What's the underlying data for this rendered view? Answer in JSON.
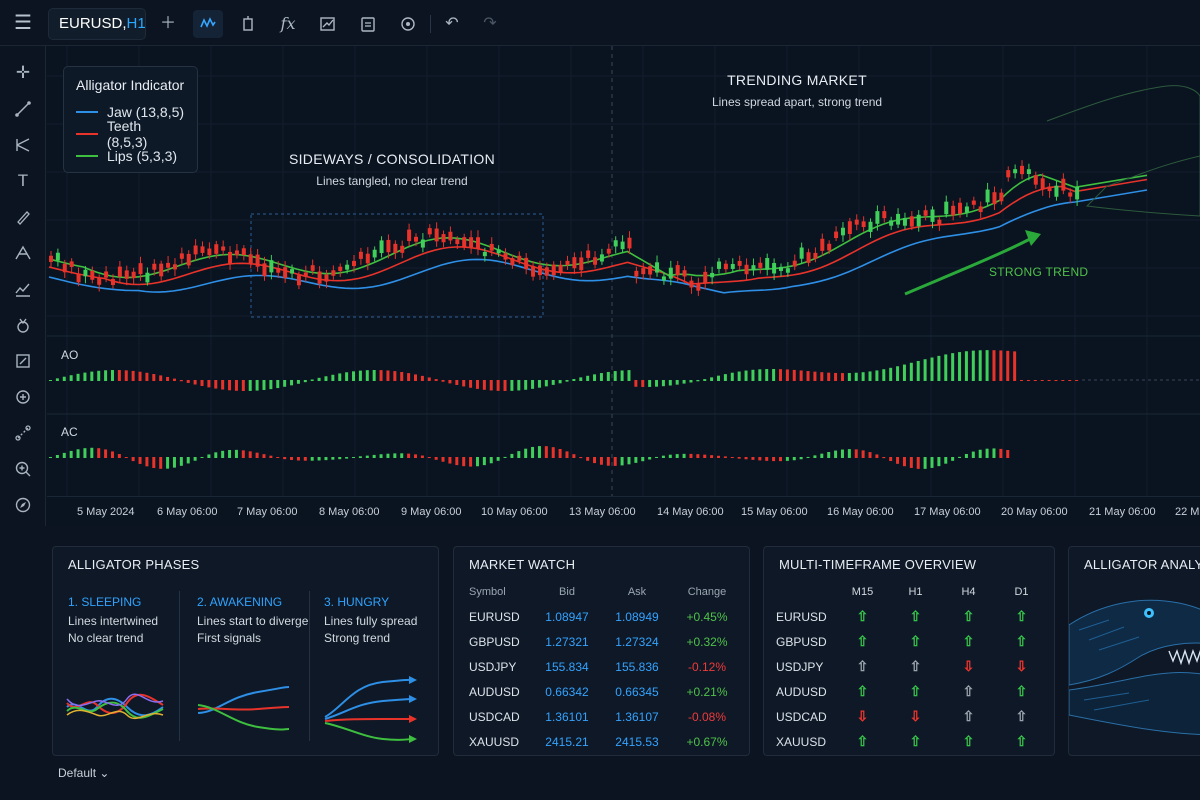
{
  "toolbar": {
    "symbol": "EURUSD,",
    "timeframe": "H1"
  },
  "legend": {
    "title": "Alligator Indicator",
    "items": [
      {
        "label": "Jaw (13,8,5)",
        "color": "#2e8fe6"
      },
      {
        "label": "Teeth (8,5,3)",
        "color": "#e8332b"
      },
      {
        "label": "Lips (5,3,3)",
        "color": "#3fbf3f"
      }
    ]
  },
  "annotations": {
    "sideways_title": "SIDEWAYS / CONSOLIDATION",
    "sideways_sub": "Lines tangled, no clear trend",
    "trending_title": "TRENDING MARKET",
    "trending_sub": "Lines spread apart, strong trend",
    "strong_trend": "STRONG TREND"
  },
  "panes": {
    "ao": "AO",
    "ac": "AC"
  },
  "dates": [
    "5 May 2024",
    "6 May 06:00",
    "7 May 06:00",
    "8 May 06:00",
    "9 May 06:00",
    "10 May 06:00",
    "13 May 06:00",
    "14 May 06:00",
    "15 May 06:00",
    "16 May 06:00",
    "17 May 06:00",
    "20 May 06:00",
    "21 May 06:00",
    "22 M"
  ],
  "phases": {
    "title": "ALLIGATOR PHASES",
    "items": [
      {
        "title": "1. SLEEPING",
        "line1": "Lines intertwined",
        "line2": "No clear trend"
      },
      {
        "title": "2. AWAKENING",
        "line1": "Lines start to diverge",
        "line2": "First signals"
      },
      {
        "title": "3. HUNGRY",
        "line1": "Lines fully spread",
        "line2": "Strong trend"
      }
    ]
  },
  "market_watch": {
    "title": "MARKET WATCH",
    "headers": [
      "Symbol",
      "Bid",
      "Ask",
      "Change"
    ],
    "rows": [
      {
        "symbol": "EURUSD",
        "bid": "1.08947",
        "ask": "1.08949",
        "change": "+0.45%",
        "dir": "up"
      },
      {
        "symbol": "GBPUSD",
        "bid": "1.27321",
        "ask": "1.27324",
        "change": "+0.32%",
        "dir": "up"
      },
      {
        "symbol": "USDJPY",
        "bid": "155.834",
        "ask": "155.836",
        "change": "-0.12%",
        "dir": "dn"
      },
      {
        "symbol": "AUDUSD",
        "bid": "0.66342",
        "ask": "0.66345",
        "change": "+0.21%",
        "dir": "up"
      },
      {
        "symbol": "USDCAD",
        "bid": "1.36101",
        "ask": "1.36107",
        "change": "-0.08%",
        "dir": "dn"
      },
      {
        "symbol": "XAUUSD",
        "bid": "2415.21",
        "ask": "2415.53",
        "change": "+0.67%",
        "dir": "up"
      }
    ]
  },
  "mtf": {
    "title": "MULTI-TIMEFRAME OVERVIEW",
    "headers": [
      "M15",
      "H1",
      "H4",
      "D1"
    ],
    "rows": [
      {
        "symbol": "EURUSD",
        "cells": [
          "green-up",
          "green-up",
          "green-up",
          "green-up"
        ]
      },
      {
        "symbol": "GBPUSD",
        "cells": [
          "green-up",
          "green-up",
          "green-up",
          "green-up"
        ]
      },
      {
        "symbol": "USDJPY",
        "cells": [
          "gray-up",
          "gray-up",
          "red-down",
          "red-down"
        ]
      },
      {
        "symbol": "AUDUSD",
        "cells": [
          "green-up",
          "green-up",
          "gray-up",
          "green-up"
        ]
      },
      {
        "symbol": "USDCAD",
        "cells": [
          "red-down",
          "red-down",
          "gray-up",
          "gray-up"
        ]
      },
      {
        "symbol": "XAUUSD",
        "cells": [
          "green-up",
          "green-up",
          "green-up",
          "green-up"
        ]
      }
    ]
  },
  "analysis": {
    "title": "ALLIGATOR ANALYSIS"
  },
  "footer": {
    "layout": "Default"
  }
}
